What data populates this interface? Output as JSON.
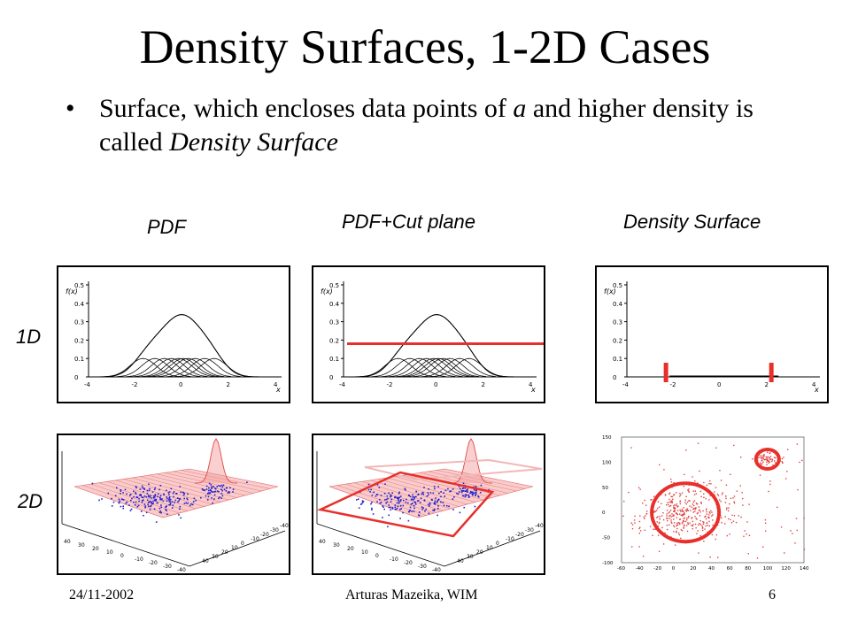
{
  "slide": {
    "title": "Density Surfaces, 1-2D Cases",
    "bullet_parts": [
      {
        "text": "Surface, which encloses data points of ",
        "italic": false
      },
      {
        "text": "a",
        "italic": true
      },
      {
        "text": " and higher density is called ",
        "italic": false
      },
      {
        "text": "Density Surface",
        "italic": true
      }
    ],
    "columns": [
      "PDF",
      "PDF+Cut plane",
      "Density Surface"
    ],
    "rows": [
      "1D",
      "2D"
    ],
    "plot_labels": {
      "fx": "f(x)",
      "x": "x",
      "y_ticks_1d": [
        "0.5",
        "0.4",
        "0.3",
        "0.2",
        "0.1",
        "0"
      ],
      "x_ticks_1d": [
        "-4",
        "-2",
        "0",
        "2",
        "4"
      ],
      "y_ticks_scatter": [
        "150",
        "100",
        "50",
        "0",
        "-50",
        "-100"
      ],
      "x_ticks_scatter": [
        "-60",
        "-40",
        "-20",
        "0",
        "20",
        "40",
        "60",
        "80",
        "100",
        "120",
        "140"
      ],
      "ticks_3d": [
        "40",
        "30",
        "20",
        "10",
        "0",
        "-10",
        "-20",
        "-30",
        "-40"
      ]
    },
    "footer": {
      "date": "24/11-2002",
      "author": "Arturas Mazeika, WIM",
      "page": "6"
    }
  },
  "colors": {
    "cut": "#e8302b",
    "points": "#2222cc",
    "scatter": "#e04040",
    "surface": "#f4a0a0"
  }
}
